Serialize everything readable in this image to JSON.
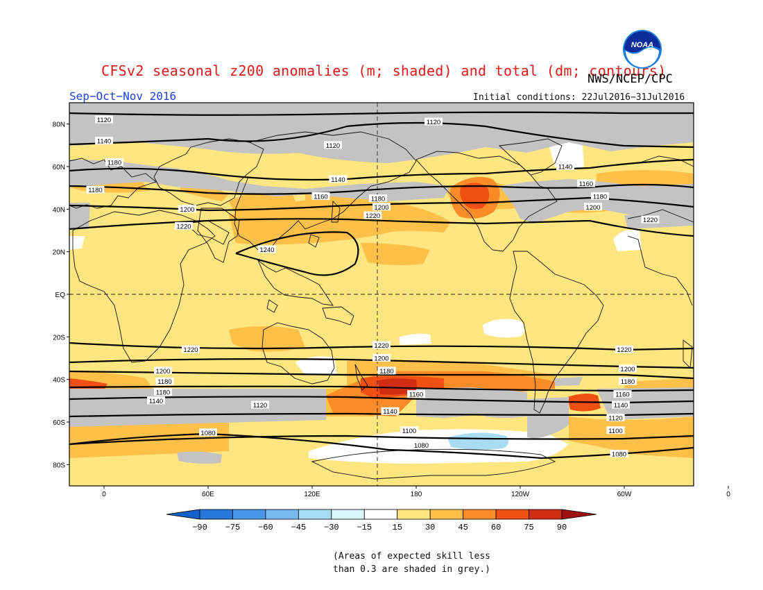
{
  "header": {
    "title": "CFSv2 seasonal z200 anomalies (m; shaded) and total (dm; contours)",
    "agency": "NWS/NCEP/CPC",
    "season": "Sep−Oct−Nov 2016",
    "initial_conditions": "Initial conditions: 22Jul2016−31Jul2016",
    "logo_text": "NOAA"
  },
  "map": {
    "projection": "equirectangular",
    "lat_labels": [
      "80N",
      "60N",
      "40N",
      "20N",
      "EQ",
      "20S",
      "40S",
      "60S",
      "80S"
    ],
    "lon_labels": [
      "0",
      "60E",
      "120E",
      "180",
      "120W",
      "60W",
      "0"
    ],
    "contour_labels": [
      {
        "text": "1120",
        "lon": 0,
        "lat": 82
      },
      {
        "text": "1120",
        "lon": -170,
        "lat": 81
      },
      {
        "text": "1140",
        "lon": 0,
        "lat": 72
      },
      {
        "text": "1120",
        "lon": 132,
        "lat": 70
      },
      {
        "text": "1180",
        "lon": 6,
        "lat": 62
      },
      {
        "text": "1140",
        "lon": -94,
        "lat": 60
      },
      {
        "text": "1140",
        "lon": 135,
        "lat": 54
      },
      {
        "text": "1160",
        "lon": -82,
        "lat": 52
      },
      {
        "text": "1180",
        "lon": -5,
        "lat": 49
      },
      {
        "text": "1160",
        "lon": 125,
        "lat": 46
      },
      {
        "text": "1180",
        "lon": 158,
        "lat": 45
      },
      {
        "text": "1200",
        "lon": 160,
        "lat": 41
      },
      {
        "text": "1180",
        "lon": -74,
        "lat": 46
      },
      {
        "text": "1200",
        "lon": -78,
        "lat": 41
      },
      {
        "text": "1200",
        "lon": 48,
        "lat": 40
      },
      {
        "text": "1220",
        "lon": 155,
        "lat": 37
      },
      {
        "text": "1220",
        "lon": -45,
        "lat": 35
      },
      {
        "text": "1220",
        "lon": 46,
        "lat": 32
      },
      {
        "text": "1240",
        "lon": 94,
        "lat": 21
      },
      {
        "text": "1220",
        "lon": 50,
        "lat": -26
      },
      {
        "text": "1220",
        "lon": 160,
        "lat": -24
      },
      {
        "text": "1220",
        "lon": -60,
        "lat": -26
      },
      {
        "text": "1200",
        "lon": 160,
        "lat": -30
      },
      {
        "text": "1200",
        "lon": -58,
        "lat": -35
      },
      {
        "text": "1180",
        "lon": 163,
        "lat": -36
      },
      {
        "text": "1200",
        "lon": 34,
        "lat": -36
      },
      {
        "text": "1180",
        "lon": 35,
        "lat": -41
      },
      {
        "text": "1180",
        "lon": -58,
        "lat": -41
      },
      {
        "text": "1160",
        "lon": 180,
        "lat": -47
      },
      {
        "text": "1160",
        "lon": -61,
        "lat": -47
      },
      {
        "text": "1180",
        "lon": 34,
        "lat": -46
      },
      {
        "text": "1140",
        "lon": 30,
        "lat": -50
      },
      {
        "text": "1140",
        "lon": 165,
        "lat": -55
      },
      {
        "text": "1140",
        "lon": -62,
        "lat": -52
      },
      {
        "text": "1120",
        "lon": 90,
        "lat": -52
      },
      {
        "text": "1120",
        "lon": -65,
        "lat": -58
      },
      {
        "text": "1100",
        "lon": 176,
        "lat": -64
      },
      {
        "text": "1100",
        "lon": -65,
        "lat": -64
      },
      {
        "text": "1080",
        "lon": 60,
        "lat": -65
      },
      {
        "text": "1080",
        "lon": -177,
        "lat": -71
      },
      {
        "text": "1080",
        "lon": -63,
        "lat": -75
      }
    ]
  },
  "colorbar": {
    "labels": [
      "−90",
      "−75",
      "−60",
      "−45",
      "−30",
      "−15",
      "15",
      "30",
      "45",
      "60",
      "75",
      "90"
    ],
    "bin_colors": [
      "#1560c8",
      "#2878dc",
      "#4a96e6",
      "#78b8ef",
      "#a8dcf3",
      "#d8f6f8",
      "#ffffff",
      "#ffe680",
      "#ffc04a",
      "#fa8c28",
      "#f05014",
      "#d22d14",
      "#a01010"
    ]
  },
  "footnote": {
    "line1": "(Areas of expected skill less",
    "line2": "than 0.3 are shaded in grey.)"
  },
  "colors": {
    "title": "#e01818",
    "season": "#2040e0",
    "skill_grey": "#c3c3c3",
    "land_outline": "#101010"
  }
}
